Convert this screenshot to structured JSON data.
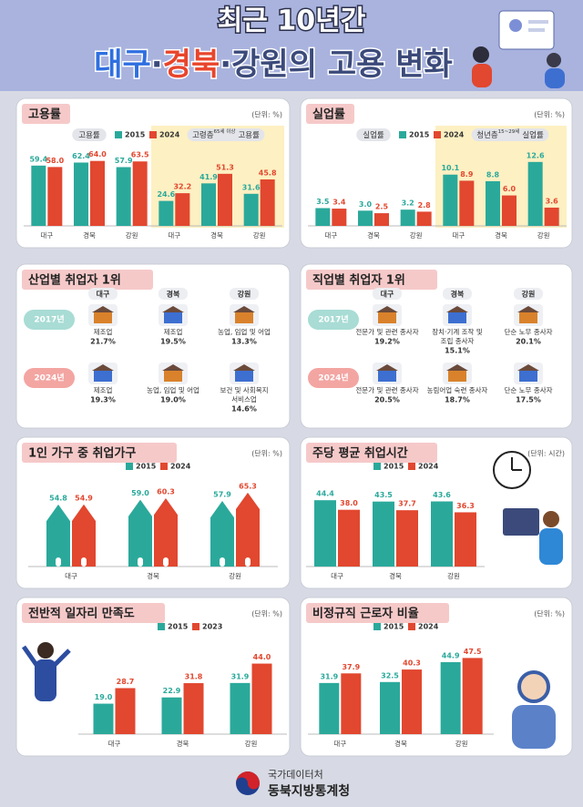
{
  "header": {
    "line1": "최근 10년간",
    "title_parts": [
      "대구",
      "·",
      "경북",
      "·강원의 고용 변화"
    ]
  },
  "chart_data": [
    {
      "type": "bar",
      "title": "고용률",
      "unit": "(단위: %)",
      "groups": [
        {
          "label": "고용률"
        },
        {
          "label": "고령층",
          "note": "65세 이상",
          "label2": "고용률"
        }
      ],
      "categories": [
        "대구",
        "경북",
        "강원",
        "대구",
        "경북",
        "강원"
      ],
      "series": [
        {
          "name": "2015",
          "color": "#2aa99b",
          "values": [
            59.4,
            62.4,
            57.9,
            24.6,
            41.9,
            31.6
          ],
          "value_labels": [
            "59.4",
            "62.4",
            "57.9",
            "24.6",
            "41.9",
            "31.6"
          ]
        },
        {
          "name": "2024",
          "color": "#e2472f",
          "values": [
            58.0,
            64.0,
            63.5,
            32.2,
            51.3,
            45.8
          ],
          "value_labels": [
            "58.0",
            "64.0",
            "63.5",
            "32.2",
            "51.3",
            "45.8"
          ]
        }
      ],
      "ylim": [
        0,
        70
      ]
    },
    {
      "type": "bar",
      "title": "실업률",
      "unit": "(단위: %)",
      "groups": [
        {
          "label": "실업률"
        },
        {
          "label": "청년층",
          "note": "15~29세",
          "label2": "실업률"
        }
      ],
      "categories": [
        "대구",
        "경북",
        "강원",
        "대구",
        "경북",
        "강원"
      ],
      "series": [
        {
          "name": "2015",
          "color": "#2aa99b",
          "values": [
            3.5,
            3.0,
            3.2,
            10.1,
            8.8,
            12.6
          ],
          "value_labels": [
            "3.5",
            "3.0",
            "3.2",
            "10.1",
            "8.8",
            "12.6"
          ]
        },
        {
          "name": "2024",
          "color": "#e2472f",
          "values": [
            3.4,
            2.5,
            2.8,
            8.9,
            6.0,
            3.6
          ],
          "value_labels": [
            "3.4",
            "2.5",
            "2.8",
            "8.9",
            "6.0",
            "3.6"
          ]
        }
      ],
      "ylim": [
        0,
        14
      ]
    },
    {
      "type": "bar",
      "mark_shape": "house",
      "title": "1인 가구 중 취업가구",
      "unit": "(단위: %)",
      "categories": [
        "대구",
        "경북",
        "강원"
      ],
      "series": [
        {
          "name": "2015",
          "color": "#2aa99b",
          "values": [
            54.8,
            59.0,
            57.9
          ],
          "value_labels": [
            "54.8",
            "59.0",
            "57.9"
          ]
        },
        {
          "name": "2024",
          "color": "#e2472f",
          "values": [
            54.9,
            60.3,
            65.3
          ],
          "value_labels": [
            "54.9",
            "60.3",
            "65.3"
          ]
        }
      ],
      "ylim": [
        0,
        70
      ]
    },
    {
      "type": "bar",
      "title": "주당 평균 취업시간",
      "unit": "(단위: 시간)",
      "categories": [
        "대구",
        "경북",
        "강원"
      ],
      "series": [
        {
          "name": "2015",
          "color": "#2aa99b",
          "values": [
            44.4,
            43.5,
            43.6
          ],
          "value_labels": [
            "44.4",
            "43.5",
            "43.6"
          ]
        },
        {
          "name": "2024",
          "color": "#e2472f",
          "values": [
            38.0,
            37.7,
            36.3
          ],
          "value_labels": [
            "38.0",
            "37.7",
            "36.3"
          ]
        }
      ],
      "ylim": [
        0,
        50
      ]
    },
    {
      "type": "bar",
      "title": "전반적 일자리 만족도",
      "unit": "(단위: %)",
      "categories": [
        "대구",
        "경북",
        "강원"
      ],
      "series": [
        {
          "name": "2015",
          "color": "#2aa99b",
          "values": [
            19.0,
            22.9,
            31.9
          ],
          "value_labels": [
            "19.0",
            "22.9",
            "31.9"
          ]
        },
        {
          "name": "2023",
          "color": "#e2472f",
          "values": [
            28.7,
            31.8,
            44.0
          ],
          "value_labels": [
            "28.7",
            "31.8",
            "44.0"
          ]
        }
      ],
      "ylim": [
        0,
        50
      ]
    },
    {
      "type": "bar",
      "title": "비정규직 근로자 비율",
      "unit": "(단위: %)",
      "categories": [
        "대구",
        "경북",
        "강원"
      ],
      "series": [
        {
          "name": "2015",
          "color": "#2aa99b",
          "values": [
            31.9,
            32.5,
            44.9
          ],
          "value_labels": [
            "31.9",
            "32.5",
            "44.9"
          ]
        },
        {
          "name": "2024",
          "color": "#e2472f",
          "values": [
            37.9,
            40.3,
            47.5
          ],
          "value_labels": [
            "37.9",
            "40.3",
            "47.5"
          ]
        }
      ],
      "ylim": [
        0,
        50
      ]
    }
  ],
  "industry": {
    "title": "산업별 취업자 1위",
    "columns": [
      "대구",
      "경북",
      "강원"
    ],
    "rows": [
      {
        "label": "2017년",
        "cells": [
          {
            "lines": [
              "제조업"
            ],
            "share": "21.7%"
          },
          {
            "lines": [
              "제조업"
            ],
            "share": "19.5%"
          },
          {
            "lines": [
              "농업, 임업 및 어업"
            ],
            "share": "13.3%"
          }
        ]
      },
      {
        "label": "2024년",
        "cells": [
          {
            "lines": [
              "제조업"
            ],
            "share": "19.3%"
          },
          {
            "lines": [
              "농업, 임업 및 어업"
            ],
            "share": "19.0%"
          },
          {
            "lines": [
              "보건 및 사회복지",
              "서비스업"
            ],
            "share": "14.6%"
          }
        ]
      }
    ]
  },
  "occupation": {
    "title": "직업별 취업자 1위",
    "columns": [
      "대구",
      "경북",
      "강원"
    ],
    "rows": [
      {
        "label": "2017년",
        "cells": [
          {
            "lines": [
              "전문가 및 관련 종사자"
            ],
            "share": "19.2%"
          },
          {
            "lines": [
              "장치·기계 조작 및",
              "조립 종사자"
            ],
            "share": "15.1%"
          },
          {
            "lines": [
              "단순 노무 종사자"
            ],
            "share": "20.1%"
          }
        ]
      },
      {
        "label": "2024년",
        "cells": [
          {
            "lines": [
              "전문가 및 관련 종사자"
            ],
            "share": "20.5%"
          },
          {
            "lines": [
              "농림어업 숙련 종사자"
            ],
            "share": "18.7%"
          },
          {
            "lines": [
              "단순 노무 종사자"
            ],
            "share": "17.5%"
          }
        ]
      }
    ]
  },
  "footer": {
    "org": "국가데이터처",
    "office": "동북지방통계청"
  }
}
